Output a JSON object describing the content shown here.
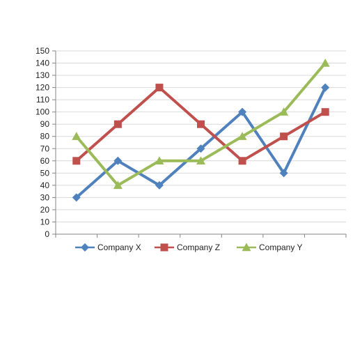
{
  "chart_data": {
    "type": "line",
    "title": "",
    "xlabel": "",
    "ylabel": "",
    "ylim": [
      0,
      150
    ],
    "yticks": [
      0,
      10,
      20,
      30,
      40,
      50,
      60,
      70,
      80,
      90,
      100,
      110,
      120,
      130,
      140,
      150
    ],
    "categories": [
      "",
      "",
      "",
      "",
      "",
      "",
      ""
    ],
    "grid": "horizontal",
    "legend_position": "bottom",
    "series": [
      {
        "name": "Company X",
        "color": "#4f81bd",
        "marker": "diamond",
        "values": [
          30,
          60,
          40,
          70,
          100,
          50,
          120
        ]
      },
      {
        "name": "Company Z",
        "color": "#c0504d",
        "marker": "square",
        "values": [
          60,
          90,
          120,
          90,
          60,
          80,
          100
        ]
      },
      {
        "name": "Company Y",
        "color": "#9bbb59",
        "marker": "triangle",
        "values": [
          80,
          40,
          60,
          60,
          80,
          100,
          140
        ]
      }
    ]
  }
}
